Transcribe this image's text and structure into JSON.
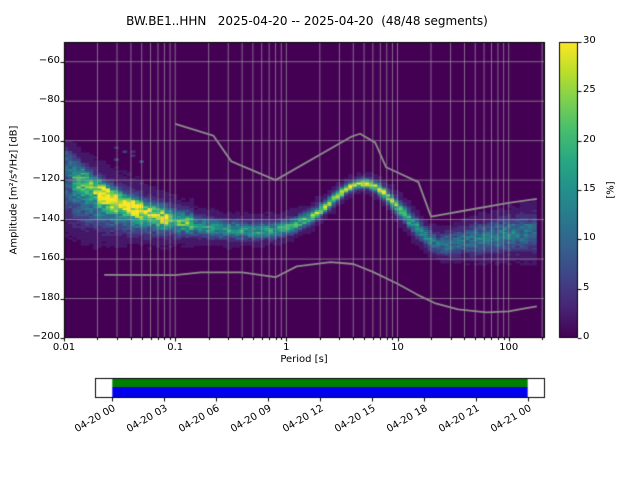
{
  "title": "BW.BE1..HHN   2025-04-20 -- 2025-04-20  (48/48 segments)",
  "station_id": "BW.BE1..HHN",
  "date_range": "2025-04-20 -- 2025-04-20",
  "segments_text": "(48/48 segments)",
  "chart_data": {
    "type": "heatmap",
    "title": "BW.BE1..HHN   2025-04-20 -- 2025-04-20  (48/48 segments)",
    "xlabel": "Period [s]",
    "ylabel": "Amplitude [m²/s⁴/Hz] [dB]",
    "xscale": "log",
    "xlim": [
      0.01,
      212
    ],
    "ylim": [
      -200,
      -50
    ],
    "x_tick_values": [
      0.01,
      0.1,
      1,
      10,
      100
    ],
    "x_tick_labels": [
      "0.01",
      "0.1",
      "1",
      "10",
      "100"
    ],
    "y_tick_values": [
      -60,
      -80,
      -100,
      -120,
      -140,
      -160,
      -180,
      -200
    ],
    "y_tick_labels": [
      "−60",
      "−80",
      "−100",
      "−120",
      "−140",
      "−160",
      "−180",
      "−200"
    ],
    "grid": true,
    "background_color": "#440154",
    "colormap": "viridis",
    "colorbar": {
      "label": "[%]",
      "min": 0,
      "max": 30,
      "tick_values": [
        0,
        5,
        10,
        15,
        20,
        25,
        30
      ],
      "tick_labels": [
        "0",
        "5",
        "10",
        "15",
        "20",
        "25",
        "30"
      ]
    },
    "segments_used": 48,
    "segments_total": 48,
    "psd_ridge": {
      "periods": [
        0.01,
        0.013,
        0.017,
        0.022,
        0.03,
        0.04,
        0.055,
        0.075,
        0.1,
        0.14,
        0.2,
        0.3,
        0.45,
        0.65,
        0.9,
        1.2,
        1.6,
        2.1,
        2.8,
        3.6,
        4.5,
        5.5,
        7,
        9,
        11.5,
        14.5,
        18,
        23,
        30,
        40,
        55,
        75,
        100,
        135,
        179
      ],
      "center_db": [
        -126,
        -129,
        -132,
        -134,
        -136,
        -138,
        -139.5,
        -141,
        -142,
        -143,
        -144,
        -145,
        -145.5,
        -145.5,
        -144.5,
        -142.5,
        -139,
        -134.5,
        -128.5,
        -123.5,
        -121.5,
        -121.5,
        -124.5,
        -130.5,
        -137,
        -143,
        -148.5,
        -152.5,
        -152,
        -150.5,
        -149.5,
        -148.5,
        -147.5,
        -146.5,
        -146
      ],
      "spread_db": [
        9,
        8.5,
        8,
        7,
        6,
        5.2,
        4.6,
        4,
        3.6,
        3.2,
        3,
        2.8,
        2.6,
        2.5,
        2.4,
        2.3,
        2.1,
        1.9,
        1.6,
        1.4,
        1.3,
        1.4,
        1.7,
        2.1,
        2.5,
        2.8,
        3,
        3.2,
        3.6,
        4,
        4.4,
        4.7,
        5,
        5.4,
        6
      ],
      "peak_percent": [
        8,
        9,
        10,
        11,
        12,
        13,
        13,
        14,
        14,
        15,
        16,
        16,
        17,
        17,
        18,
        19,
        21,
        24,
        27,
        30,
        30,
        30,
        27,
        23,
        20,
        17,
        14,
        12,
        12,
        12,
        13,
        13,
        13,
        12,
        10
      ]
    },
    "sub_ridges": [
      {
        "periods": [
          0.01,
          0.016,
          0.03
        ],
        "center_db": [
          -106,
          -117,
          -130
        ],
        "spread_db": [
          2.5,
          2.5,
          3
        ],
        "peak_percent": [
          7,
          8,
          6
        ]
      },
      {
        "periods": [
          0.01,
          0.02,
          0.05
        ],
        "center_db": [
          -114,
          -124,
          -135
        ],
        "spread_db": [
          2.5,
          3,
          3
        ],
        "peak_percent": [
          8,
          9,
          7
        ]
      },
      {
        "periods": [
          0.012,
          0.03,
          0.09
        ],
        "center_db": [
          -122,
          -131,
          -139
        ],
        "spread_db": [
          3,
          3,
          3
        ],
        "peak_percent": [
          9,
          9,
          8
        ]
      },
      {
        "periods": [
          0.02,
          0.06,
          0.15
        ],
        "center_db": [
          -128,
          -135,
          -141
        ],
        "spread_db": [
          3,
          3,
          3
        ],
        "peak_percent": [
          8,
          9,
          9
        ]
      }
    ],
    "noise_models": {
      "color": "#8c8c8c",
      "high": [
        [
          0.1,
          -91.5
        ],
        [
          0.22,
          -97.4
        ],
        [
          0.32,
          -110.5
        ],
        [
          0.8,
          -120
        ],
        [
          3.8,
          -98.1
        ],
        [
          4.6,
          -96.5
        ],
        [
          6.3,
          -101
        ],
        [
          7.9,
          -113.5
        ],
        [
          15.4,
          -121
        ],
        [
          20,
          -138.5
        ],
        [
          50,
          -134.5
        ],
        [
          100,
          -131.5
        ],
        [
          179,
          -129.5
        ]
      ],
      "low": [
        [
          0.023,
          -168
        ],
        [
          0.1,
          -168.1
        ],
        [
          0.17,
          -166.7
        ],
        [
          0.4,
          -166.7
        ],
        [
          0.8,
          -169.2
        ],
        [
          1.24,
          -163.7
        ],
        [
          2.5,
          -161.5
        ],
        [
          4,
          -162.5
        ],
        [
          6,
          -166.5
        ],
        [
          10,
          -172.5
        ],
        [
          15,
          -178
        ],
        [
          22,
          -182.5
        ],
        [
          35,
          -185.5
        ],
        [
          63,
          -187
        ],
        [
          100,
          -186.5
        ],
        [
          140,
          -185
        ],
        [
          179,
          -184
        ]
      ]
    }
  },
  "timeline": {
    "axis_hours": [
      -1,
      25
    ],
    "tick_hours": [
      0,
      3,
      6,
      9,
      12,
      15,
      18,
      21,
      24
    ],
    "tick_labels": [
      "04-20 00",
      "04-20 03",
      "04-20 06",
      "04-20 09",
      "04-20 12",
      "04-20 15",
      "04-20 18",
      "04-20 21",
      "04-21 00"
    ],
    "coverage_hours": [
      0,
      24
    ],
    "coverage_colors": {
      "top": "#008000",
      "bottom": "#0000ee"
    }
  }
}
